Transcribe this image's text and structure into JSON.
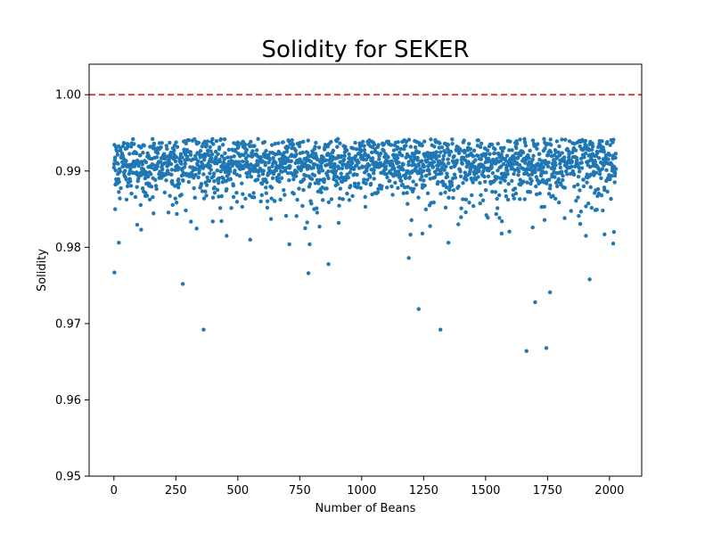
{
  "chart_data": {
    "type": "scatter",
    "title": "Solidity for SEKER",
    "xlabel": "Number of Beans",
    "ylabel": "Solidity",
    "xlim": [
      -100,
      2130
    ],
    "ylim": [
      0.95,
      1.004
    ],
    "x_ticks": [
      0,
      250,
      500,
      750,
      1000,
      1250,
      1500,
      1750,
      2000
    ],
    "y_ticks": [
      0.95,
      0.96,
      0.97,
      0.98,
      0.99,
      1.0
    ],
    "x_tick_labels": [
      "0",
      "250",
      "500",
      "750",
      "1000",
      "1250",
      "1500",
      "1750",
      "2000"
    ],
    "y_tick_labels": [
      "0.95",
      "0.96",
      "0.97",
      "0.98",
      "0.99",
      "1.00"
    ],
    "reference_line": {
      "y": 1.0,
      "style": "dashed",
      "color": "#d62728"
    },
    "marker_color": "#1f77b4",
    "grid": false,
    "legend": "none",
    "n_points": 2027,
    "cluster_center": 0.991,
    "cluster_spread": 0.0025,
    "outliers": [
      {
        "x": 2,
        "y": 0.9767
      },
      {
        "x": 5,
        "y": 0.985
      },
      {
        "x": 20,
        "y": 0.9806
      },
      {
        "x": 278,
        "y": 0.9752
      },
      {
        "x": 362,
        "y": 0.9692
      },
      {
        "x": 455,
        "y": 0.9815
      },
      {
        "x": 550,
        "y": 0.981
      },
      {
        "x": 708,
        "y": 0.9804
      },
      {
        "x": 785,
        "y": 0.9766
      },
      {
        "x": 790,
        "y": 0.9804
      },
      {
        "x": 866,
        "y": 0.9778
      },
      {
        "x": 1190,
        "y": 0.9786
      },
      {
        "x": 1230,
        "y": 0.9719
      },
      {
        "x": 1245,
        "y": 0.9818
      },
      {
        "x": 1318,
        "y": 0.9692
      },
      {
        "x": 1350,
        "y": 0.9806
      },
      {
        "x": 1565,
        "y": 0.9818
      },
      {
        "x": 1665,
        "y": 0.9664
      },
      {
        "x": 1690,
        "y": 0.9826
      },
      {
        "x": 1700,
        "y": 0.9728
      },
      {
        "x": 1745,
        "y": 0.9668
      },
      {
        "x": 1760,
        "y": 0.9741
      },
      {
        "x": 1905,
        "y": 0.9815
      },
      {
        "x": 1920,
        "y": 0.9758
      },
      {
        "x": 1980,
        "y": 0.9817
      },
      {
        "x": 2015,
        "y": 0.9805
      },
      {
        "x": 2018,
        "y": 0.982
      }
    ]
  }
}
